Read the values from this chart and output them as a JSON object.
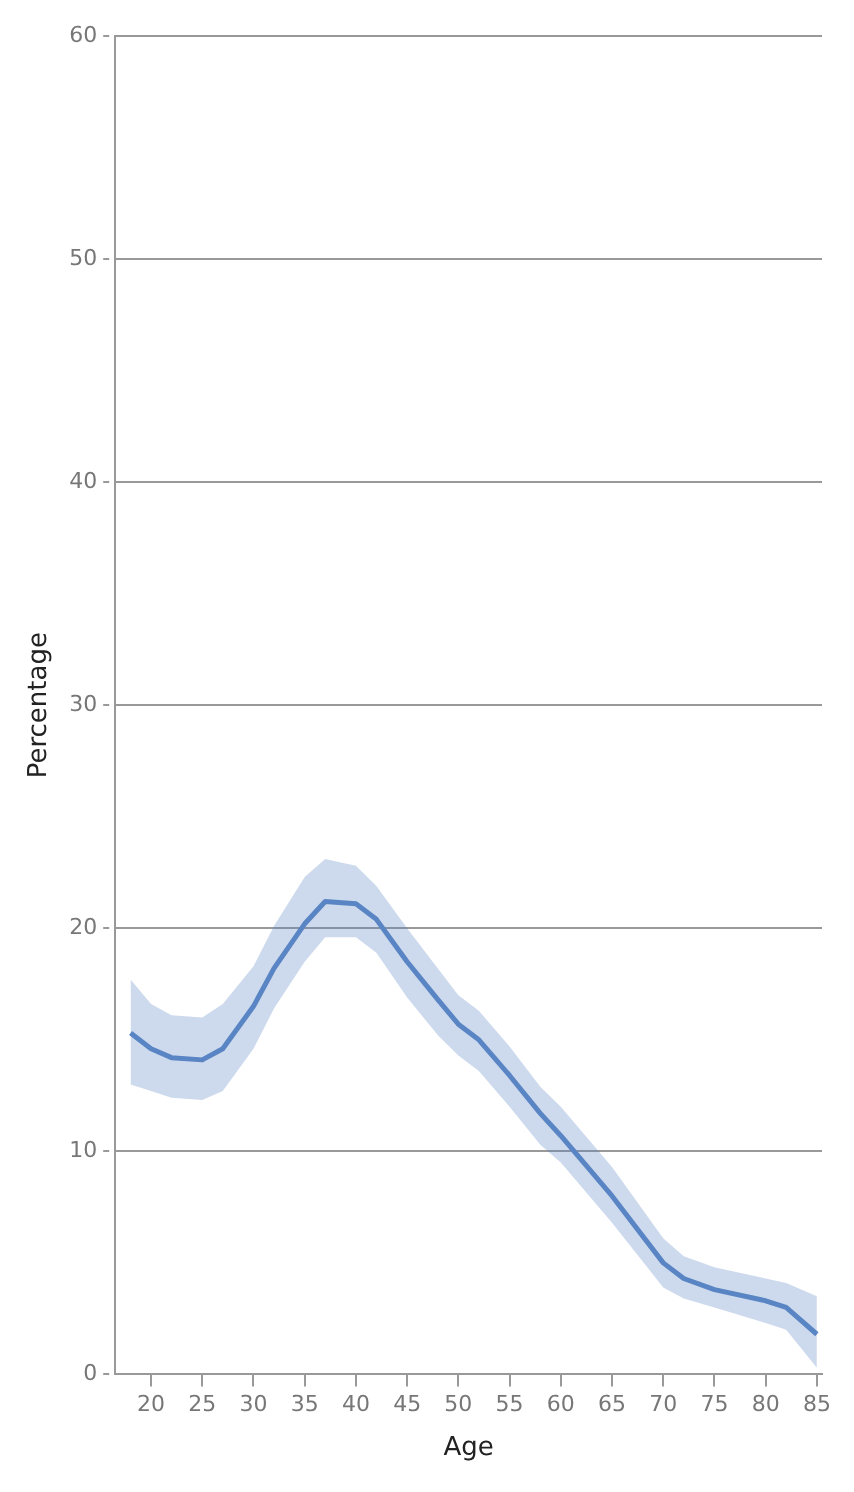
{
  "chart_data": {
    "type": "line",
    "xlabel": "Age",
    "ylabel": "Percentage",
    "x": [
      18,
      20,
      22,
      25,
      27,
      30,
      32,
      35,
      37,
      40,
      42,
      45,
      48,
      50,
      52,
      55,
      58,
      60,
      65,
      70,
      72,
      75,
      80,
      82,
      85
    ],
    "series": [
      {
        "color": "#5b86c5",
        "values": [
          15.3,
          14.6,
          14.2,
          14.1,
          14.6,
          16.5,
          18.2,
          20.2,
          21.2,
          21.1,
          20.4,
          18.5,
          16.8,
          15.7,
          15.0,
          13.4,
          11.7,
          10.7,
          8.0,
          5.0,
          4.3,
          3.8,
          3.3,
          3.0,
          1.8
        ],
        "upper": [
          17.7,
          16.6,
          16.1,
          16.0,
          16.6,
          18.3,
          20.1,
          22.3,
          23.1,
          22.8,
          21.9,
          20.0,
          18.2,
          17.0,
          16.3,
          14.7,
          12.9,
          12.0,
          9.3,
          6.1,
          5.3,
          4.8,
          4.3,
          4.1,
          3.5
        ],
        "lower": [
          13.0,
          12.7,
          12.4,
          12.3,
          12.7,
          14.6,
          16.4,
          18.5,
          19.6,
          19.6,
          18.9,
          16.9,
          15.2,
          14.3,
          13.6,
          12.0,
          10.3,
          9.5,
          6.8,
          3.9,
          3.4,
          3.0,
          2.3,
          2.0,
          0.3
        ]
      }
    ],
    "xlim": [
      16.5,
      85.5
    ],
    "xticks": [
      20,
      25,
      30,
      35,
      40,
      45,
      50,
      55,
      60,
      65,
      70,
      75,
      80,
      85
    ],
    "ylim": [
      0,
      60
    ],
    "yticks": [
      0,
      10,
      20,
      30,
      40,
      50,
      60
    ],
    "grid": "y",
    "legend": false,
    "marker": "none",
    "line_style": "solid"
  }
}
